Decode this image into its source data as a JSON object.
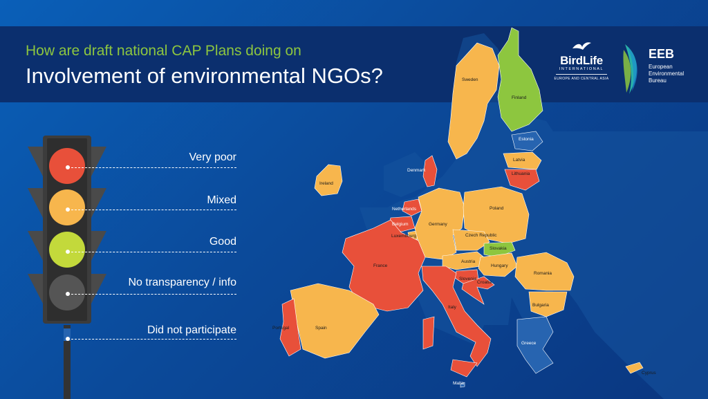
{
  "header": {
    "subtitle": "How are draft national CAP Plans doing on",
    "title": "Involvement of environmental NGOs?"
  },
  "logos": {
    "birdlife": {
      "name": "BirdLife",
      "tagline": "INTERNATIONAL",
      "region": "EUROPE AND CENTRAL ASIA"
    },
    "eeb": {
      "abbr": "EEB",
      "full_line1": "European",
      "full_line2": "Environmental",
      "full_line3": "Bureau"
    }
  },
  "legend": {
    "items": [
      {
        "label": "Very poor",
        "color": "#e8503a"
      },
      {
        "label": "Mixed",
        "color": "#f7b64d"
      },
      {
        "label": "Good",
        "color": "#8dc63f"
      },
      {
        "label": "No transparency / info",
        "color": "#4a4a4a"
      },
      {
        "label": "Did not participate",
        "color": "#1a4f9c"
      }
    ]
  },
  "colors": {
    "very_poor": "#e8503a",
    "mixed": "#f7b64d",
    "good": "#8dc63f",
    "did_not_participate": "#2764b0",
    "non_eu": "#15549f"
  },
  "countries": {
    "sweden": {
      "label": "Sweden",
      "rating": "mixed"
    },
    "finland": {
      "label": "Finland",
      "rating": "good"
    },
    "estonia": {
      "label": "Estonia",
      "rating": "did_not_participate"
    },
    "latvia": {
      "label": "Latvia",
      "rating": "mixed"
    },
    "lithuania": {
      "label": "Lithuania",
      "rating": "very_poor"
    },
    "denmark": {
      "label": "Denmark",
      "rating": "very_poor"
    },
    "ireland": {
      "label": "Ireland",
      "rating": "mixed"
    },
    "netherlands": {
      "label": "Netherlands",
      "rating": "very_poor"
    },
    "belgium": {
      "label": "Belgium",
      "rating": "very_poor"
    },
    "luxembourg": {
      "label": "Luxembourg",
      "rating": "mixed"
    },
    "germany": {
      "label": "Germany",
      "rating": "mixed"
    },
    "poland": {
      "label": "Poland",
      "rating": "mixed"
    },
    "czech": {
      "label": "Czech Republic",
      "rating": "mixed"
    },
    "slovakia": {
      "label": "Slovakia",
      "rating": "good"
    },
    "austria": {
      "label": "Austria",
      "rating": "mixed"
    },
    "hungary": {
      "label": "Hungary",
      "rating": "mixed"
    },
    "slovenia": {
      "label": "Slovenia",
      "rating": "very_poor"
    },
    "croatia": {
      "label": "Croatia",
      "rating": "very_poor"
    },
    "romania": {
      "label": "Romania",
      "rating": "mixed"
    },
    "bulgaria": {
      "label": "Bulgaria",
      "rating": "mixed"
    },
    "greece": {
      "label": "Greece",
      "rating": "did_not_participate"
    },
    "france": {
      "label": "France",
      "rating": "very_poor"
    },
    "spain": {
      "label": "Spain",
      "rating": "mixed"
    },
    "portugal": {
      "label": "Portugal",
      "rating": "very_poor"
    },
    "italy": {
      "label": "Italy",
      "rating": "very_poor"
    },
    "malta": {
      "label": "Malta",
      "rating": "did_not_participate"
    },
    "cyprus": {
      "label": "Cyprus",
      "rating": "mixed"
    }
  }
}
